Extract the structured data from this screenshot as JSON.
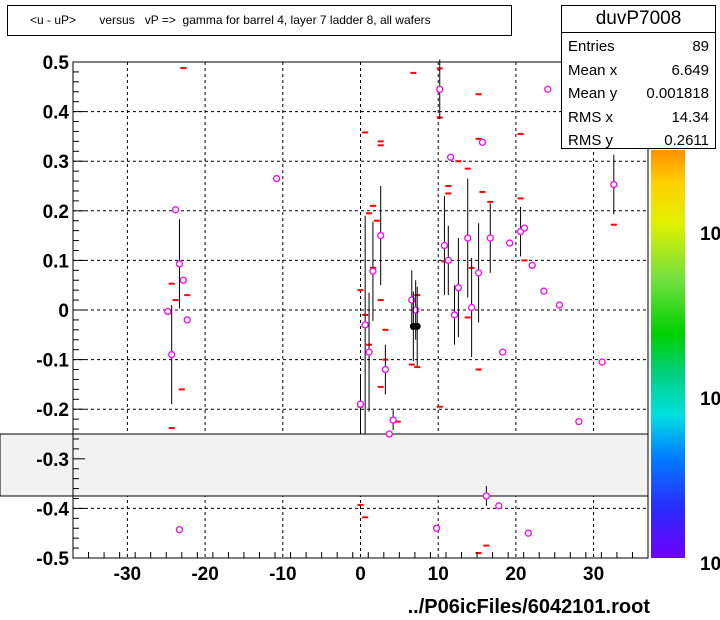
{
  "title": "<u - uP>       versus   vP =>  gamma for barrel 4, layer 7 ladder 8, all wafers",
  "footer": "../P06icFiles/6042101.root",
  "stats": {
    "name": "duvP7008",
    "rows": [
      {
        "label": "Entries",
        "value": "89"
      },
      {
        "label": "Mean x",
        "value": "6.649"
      },
      {
        "label": "Mean y",
        "value": "0.001818"
      },
      {
        "label": "RMS x",
        "value": "14.34"
      },
      {
        "label": "RMS y",
        "value": "0.2611"
      }
    ]
  },
  "palette_labels": [
    "10",
    "10",
    "10"
  ],
  "colors": {
    "marker": "#ff00ff",
    "flat": "#ff0000",
    "band": "#f2f2f2"
  },
  "chart_data": {
    "type": "scatter",
    "xlim": [
      -37,
      37
    ],
    "ylim": [
      -0.5,
      0.5
    ],
    "x_ticks": [
      -30,
      -20,
      -10,
      0,
      10,
      20,
      30
    ],
    "y_ticks": [
      0.5,
      0.4,
      0.3,
      0.2,
      0.1,
      0,
      -0.1,
      -0.2,
      -0.3,
      -0.4,
      -0.5
    ],
    "x_tick_labels": [
      "-30",
      "-20",
      "-10",
      "0",
      "10",
      "20",
      "30"
    ],
    "y_tick_labels": [
      "0.5",
      "0.4",
      "0.3",
      "0.2",
      "0.1",
      "0",
      "-0.1",
      "-0.2",
      "-0.3",
      "-0.4",
      "-0.5"
    ],
    "grid": true,
    "band": [
      -0.375,
      -0.25
    ],
    "points": [
      {
        "x": -24.8,
        "y": -0.003,
        "err": 0.0
      },
      {
        "x": -24.3,
        "y": -0.09,
        "err": 0.1
      },
      {
        "x": -23.8,
        "y": 0.202,
        "err": 0.0
      },
      {
        "x": -23.3,
        "y": 0.093,
        "err": 0.09
      },
      {
        "x": -22.8,
        "y": 0.06,
        "err": 0.0
      },
      {
        "x": -22.3,
        "y": -0.02,
        "err": 0.0
      },
      {
        "x": -23.3,
        "y": -0.443,
        "err": 0.0
      },
      {
        "x": -10.8,
        "y": 0.265,
        "err": 0.0
      },
      {
        "x": 0.0,
        "y": -0.19,
        "err": 0.06
      },
      {
        "x": 0.6,
        "y": -0.03,
        "err": 0.22
      },
      {
        "x": 1.1,
        "y": -0.085,
        "err": 0.12
      },
      {
        "x": 1.6,
        "y": 0.078,
        "err": 0.1
      },
      {
        "x": 2.6,
        "y": 0.15,
        "err": 0.1
      },
      {
        "x": 3.2,
        "y": -0.12,
        "err": 0.05
      },
      {
        "x": 3.7,
        "y": -0.25,
        "err": 0.0
      },
      {
        "x": 4.2,
        "y": -0.222,
        "err": 0.02
      },
      {
        "x": 6.6,
        "y": 0.02,
        "err": 0.06
      },
      {
        "x": 7.1,
        "y": 0.0,
        "err": 0.06
      },
      {
        "x": 9.8,
        "y": -0.44,
        "err": 0.0
      },
      {
        "x": 10.2,
        "y": 0.445,
        "err": 0.06
      },
      {
        "x": 10.8,
        "y": 0.13,
        "err": 0.1
      },
      {
        "x": 11.3,
        "y": 0.1,
        "err": 0.07
      },
      {
        "x": 11.6,
        "y": 0.308,
        "err": 0.0
      },
      {
        "x": 12.1,
        "y": -0.01,
        "err": 0.06
      },
      {
        "x": 12.6,
        "y": 0.045,
        "err": 0.1
      },
      {
        "x": 13.8,
        "y": 0.145,
        "err": 0.12
      },
      {
        "x": 14.3,
        "y": 0.005,
        "err": 0.1
      },
      {
        "x": 15.2,
        "y": 0.075,
        "err": 0.1
      },
      {
        "x": 15.7,
        "y": 0.338,
        "err": 0.0
      },
      {
        "x": 16.2,
        "y": -0.375,
        "err": 0.02
      },
      {
        "x": 16.7,
        "y": 0.145,
        "err": 0.07
      },
      {
        "x": 17.8,
        "y": -0.395,
        "err": 0.0
      },
      {
        "x": 18.3,
        "y": -0.085,
        "err": 0.0
      },
      {
        "x": 19.2,
        "y": 0.135,
        "err": 0.0
      },
      {
        "x": 20.6,
        "y": 0.158,
        "err": 0.05
      },
      {
        "x": 21.1,
        "y": 0.165,
        "err": 0.0
      },
      {
        "x": 21.6,
        "y": -0.45,
        "err": 0.0
      },
      {
        "x": 22.1,
        "y": 0.09,
        "err": 0.0
      },
      {
        "x": 23.6,
        "y": 0.038,
        "err": 0.0
      },
      {
        "x": 24.1,
        "y": 0.445,
        "err": 0.0
      },
      {
        "x": 25.6,
        "y": 0.01,
        "err": 0.0
      },
      {
        "x": 28.1,
        "y": -0.225,
        "err": 0.0
      },
      {
        "x": 31.1,
        "y": -0.105,
        "err": 0.0
      },
      {
        "x": 32.6,
        "y": 0.253,
        "err": 0.06
      }
    ],
    "profile_points": [
      {
        "x": 6.8,
        "y": -0.033,
        "err": 0.07
      },
      {
        "x": 7.3,
        "y": -0.033,
        "err": 0.08
      }
    ],
    "flat_marks": [
      {
        "x": -22.8,
        "y": 0.488
      },
      {
        "x": -24.3,
        "y": 0.053
      },
      {
        "x": -23.8,
        "y": 0.02
      },
      {
        "x": -23.0,
        "y": -0.16
      },
      {
        "x": -24.3,
        "y": -0.238
      },
      {
        "x": -22.3,
        "y": 0.03
      },
      {
        "x": 6.8,
        "y": 0.478
      },
      {
        "x": 10.2,
        "y": 0.487
      },
      {
        "x": 10.2,
        "y": 0.388
      },
      {
        "x": 0.6,
        "y": 0.358
      },
      {
        "x": 2.6,
        "y": 0.34
      },
      {
        "x": 2.6,
        "y": 0.332
      },
      {
        "x": 1.6,
        "y": 0.21
      },
      {
        "x": 1.1,
        "y": 0.195
      },
      {
        "x": 2.1,
        "y": 0.18
      },
      {
        "x": 1.6,
        "y": 0.085
      },
      {
        "x": 0.0,
        "y": 0.04
      },
      {
        "x": 2.6,
        "y": 0.02
      },
      {
        "x": 0.6,
        "y": -0.01
      },
      {
        "x": 3.2,
        "y": -0.04
      },
      {
        "x": 1.1,
        "y": -0.07
      },
      {
        "x": 3.2,
        "y": -0.1
      },
      {
        "x": 2.6,
        "y": -0.155
      },
      {
        "x": 0.0,
        "y": -0.195
      },
      {
        "x": 4.8,
        "y": -0.225
      },
      {
        "x": 0.0,
        "y": -0.393
      },
      {
        "x": 0.6,
        "y": -0.418
      },
      {
        "x": 7.3,
        "y": 0.03
      },
      {
        "x": 7.3,
        "y": -0.115
      },
      {
        "x": 6.6,
        "y": -0.11
      },
      {
        "x": 10.8,
        "y": 0.098
      },
      {
        "x": 10.2,
        "y": -0.195
      },
      {
        "x": 11.3,
        "y": 0.25
      },
      {
        "x": 11.3,
        "y": 0.235
      },
      {
        "x": 13.8,
        "y": 0.285
      },
      {
        "x": 12.6,
        "y": 0.3
      },
      {
        "x": 15.2,
        "y": 0.435
      },
      {
        "x": 15.2,
        "y": 0.345
      },
      {
        "x": 15.7,
        "y": 0.238
      },
      {
        "x": 16.7,
        "y": 0.218
      },
      {
        "x": 14.3,
        "y": 0.085
      },
      {
        "x": 13.8,
        "y": -0.015
      },
      {
        "x": 15.2,
        "y": -0.12
      },
      {
        "x": 16.2,
        "y": -0.475
      },
      {
        "x": 15.2,
        "y": -0.49
      },
      {
        "x": 20.6,
        "y": 0.355
      },
      {
        "x": 20.6,
        "y": 0.225
      },
      {
        "x": 21.1,
        "y": 0.1
      },
      {
        "x": 32.6,
        "y": 0.172
      }
    ]
  }
}
